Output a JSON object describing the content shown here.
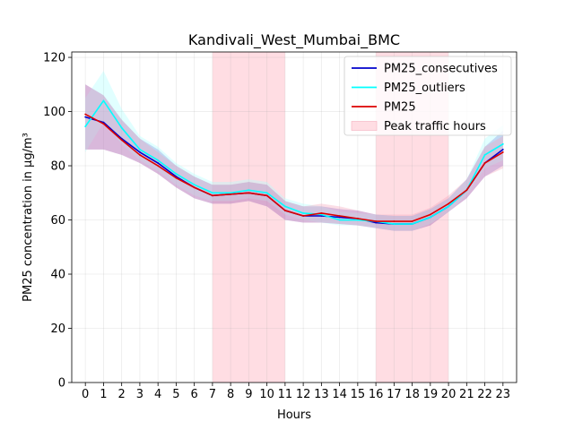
{
  "chart_data": {
    "type": "line",
    "title": "Kandivali_West_Mumbai_BMC",
    "xlabel": "Hours",
    "ylabel": "PM25 concentration in µg/m³",
    "xlim": [
      -0.75,
      23.75
    ],
    "ylim": [
      0,
      122
    ],
    "xticks": [
      0,
      1,
      2,
      3,
      4,
      5,
      6,
      7,
      8,
      9,
      10,
      11,
      12,
      13,
      14,
      15,
      16,
      17,
      18,
      19,
      20,
      21,
      22,
      23
    ],
    "yticks": [
      0,
      20,
      40,
      60,
      80,
      100,
      120
    ],
    "grid": true,
    "legend_position": "top-right",
    "x": [
      0,
      1,
      2,
      3,
      4,
      5,
      6,
      7,
      8,
      9,
      10,
      11,
      12,
      13,
      14,
      15,
      16,
      17,
      18,
      19,
      20,
      21,
      22,
      23
    ],
    "series": [
      {
        "name": "PM25_consecutives",
        "color": "#0000cc",
        "band_color": "#6a5acd",
        "values": [
          98,
          96,
          90,
          85,
          81,
          76,
          72,
          69,
          69.5,
          70,
          69,
          63.5,
          61.5,
          61.5,
          61,
          60.5,
          59,
          58.5,
          58.5,
          61,
          65,
          71,
          81,
          86
        ],
        "band_lower": [
          86,
          86,
          84,
          81,
          77,
          72,
          68,
          66,
          66,
          67,
          65,
          60,
          59,
          59,
          58.5,
          58,
          57,
          56,
          56,
          58,
          63,
          68,
          76,
          80
        ],
        "band_upper": [
          110,
          106,
          97,
          90,
          86,
          80,
          76,
          73,
          73,
          74,
          73,
          67,
          65,
          65,
          64,
          63.5,
          62,
          61.5,
          61.5,
          64,
          68,
          75,
          87,
          93
        ]
      },
      {
        "name": "PM25_outliers",
        "color": "#00ffff",
        "band_color": "#aaffff",
        "values": [
          94.5,
          104,
          94,
          86,
          82,
          77,
          73,
          70,
          70,
          71,
          70,
          65,
          62.5,
          62,
          60,
          60,
          59.5,
          58.5,
          58.5,
          61,
          65,
          71,
          84,
          88
        ],
        "band_lower": [
          85,
          96,
          88,
          82,
          78,
          73,
          69,
          67,
          67,
          68,
          67,
          62,
          60,
          59,
          58,
          58,
          57,
          56,
          56,
          58.5,
          63,
          69,
          79,
          82
        ],
        "band_upper": [
          105,
          115,
          101,
          91,
          87,
          81,
          77,
          74,
          74,
          75,
          74,
          68,
          66,
          65,
          63,
          62.5,
          62,
          61.5,
          61.5,
          64,
          68,
          75,
          90,
          95
        ]
      },
      {
        "name": "PM25",
        "color": "#dd0000",
        "band_color": "#f4a0b8",
        "values": [
          99,
          95.5,
          89.5,
          84,
          80,
          75.5,
          72,
          69,
          69.5,
          70,
          69,
          63.5,
          61.5,
          62.5,
          61.5,
          60.5,
          59.5,
          59.5,
          59.5,
          62,
          66,
          71,
          81,
          85
        ],
        "band_lower": [
          86,
          86,
          84,
          81,
          77,
          72,
          68,
          66,
          66,
          67,
          65,
          60,
          59,
          59,
          58.5,
          58,
          57,
          56,
          56,
          58,
          63,
          68,
          76,
          79
        ],
        "band_upper": [
          110,
          106,
          97,
          90,
          85,
          80,
          76,
          73,
          73,
          74,
          73,
          67,
          65,
          66,
          65,
          63.5,
          62,
          62,
          62,
          64.5,
          69,
          75,
          87,
          91
        ]
      }
    ],
    "shaded_regions": [
      {
        "name": "Peak traffic hours",
        "x_start": 7,
        "x_end": 11,
        "color": "#ffdde3"
      },
      {
        "name": "Peak traffic hours",
        "x_start": 16,
        "x_end": 20,
        "color": "#ffdde3"
      }
    ],
    "legend": [
      {
        "label": "PM25_consecutives",
        "kind": "line",
        "color": "#0000cc"
      },
      {
        "label": "PM25_outliers",
        "kind": "line",
        "color": "#00ffff"
      },
      {
        "label": "PM25",
        "kind": "line",
        "color": "#dd0000"
      },
      {
        "label": "Peak traffic hours",
        "kind": "patch",
        "color": "#ffdde3"
      }
    ]
  }
}
